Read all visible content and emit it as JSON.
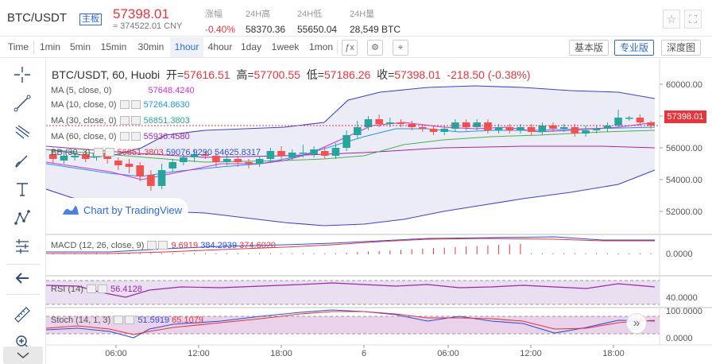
{
  "header": {
    "symbol": "BTC/USDT",
    "board_badge": "主板",
    "price": "57398.01",
    "cny": "≈ 374522.01 CNY",
    "stats": [
      {
        "label": "涨幅",
        "value": "-0.40%"
      },
      {
        "label": "24H高",
        "value": "58370.36"
      },
      {
        "label": "24H低",
        "value": "55650.04"
      },
      {
        "label": "24H量",
        "value": "28,549 BTC"
      }
    ],
    "star_icon": "☆",
    "fullscreen_icon": "⛶"
  },
  "toolbar": {
    "intervals": [
      "Time",
      "1min",
      "5min",
      "15min",
      "30min",
      "1hour",
      "4hour",
      "1day",
      "1week",
      "1mon"
    ],
    "active_interval": "1hour",
    "indicator_icon": "ƒx",
    "settings_icon": "⚙",
    "snapshot_icon": "⌖",
    "views": [
      "基本版",
      "专业版",
      "深度图"
    ],
    "selected_view": "专业版"
  },
  "chart": {
    "title": {
      "symbol": "BTC/USDT, 60, Huobi",
      "open_label": "开=",
      "open": "57616.51",
      "high_label": "高=",
      "high": "57700.55",
      "low_label": "低=",
      "low": "57186.26",
      "close_label": "收=",
      "close": "57398.01",
      "change": "-218.50 (-0.38%)"
    },
    "legends": [
      {
        "name": "MA (5, close, 0)",
        "value": "57648.4240",
        "color": "#d62fd1"
      },
      {
        "name": "MA (10, close, 0)",
        "value": "57264.8630",
        "color": "#2196f3"
      },
      {
        "name": "MA (30, close, 0)",
        "value": "56851.3803",
        "color": "#26a69a"
      },
      {
        "name": "MA (60, close, 0)",
        "value": "55936.4580",
        "color": "#9c27b0"
      }
    ],
    "bb": {
      "name": "BB (30, 3)",
      "v1": "56851.3803",
      "v2": "59076.9290",
      "v3": "54625.8317"
    },
    "tradingview": "Chart by TradingView",
    "price_label": "57398.01",
    "macd": {
      "name": "MACD (12, 26, close, 9)",
      "v1": "9.6919",
      "v2": "384.2939",
      "v3": "374.6020"
    },
    "rsi": {
      "name": "RSI (14)",
      "value": "56.4128"
    },
    "stoch": {
      "name": "Stoch (14, 1, 3)",
      "v1": "51.5919",
      "v2": "65.1079"
    },
    "x_ticks": [
      "06:00",
      "12:00",
      "18:00",
      "6",
      "06:00",
      "12:00",
      "18:00"
    ],
    "price_ticks": [
      "60000.00",
      "58000.00",
      "56000.00",
      "54000.00",
      "52000.00"
    ],
    "macd_ticks": [
      "0.0000"
    ],
    "rsi_ticks": [
      "40.0000"
    ],
    "stoch_ticks": [
      "100.0000",
      "0.0000"
    ]
  },
  "tools": [
    "crosshair-icon",
    "trend-line-icon",
    "fib-icon",
    "brush-icon",
    "text-icon",
    "pattern-icon",
    "measure-icon",
    "back-icon",
    "ruler-icon",
    "zoom-icon"
  ]
}
